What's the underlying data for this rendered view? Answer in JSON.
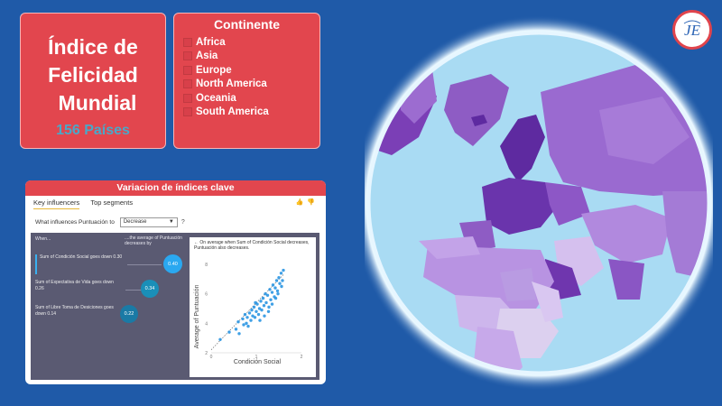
{
  "title_card": {
    "line1": "Índice de",
    "line2": "Felicidad",
    "line3": "Mundial",
    "countries": "156 Países"
  },
  "filter": {
    "title": "Continente",
    "items": [
      "Africa",
      "Asia",
      "Europe",
      "North America",
      "Oceania",
      "South America"
    ]
  },
  "logo": {
    "text": "JE"
  },
  "panel": {
    "header": "Variacion de índices clave",
    "tabs": [
      "Key influencers",
      "Top segments"
    ],
    "active_tab": "Key influencers",
    "question": "What influences Puntuación to",
    "select_value": "Decrease",
    "help": "?",
    "col_when": "When...",
    "col_result": "....the average of Puntuación decreases by",
    "influencers": [
      {
        "text": "Sum of Condición Social goes down 0.30",
        "value": "0.40"
      },
      {
        "text": "Sum of Expectativa de Vida goes down 0.26",
        "value": "0.34"
      },
      {
        "text": "Sum of Libre Toma de Desiciones goes down 0.14",
        "value": "0.22"
      }
    ],
    "scatter_note": "On average when Sum of Condición Social decreases, Puntuación also decreases.",
    "back_arrow": "←"
  },
  "chart_data": {
    "type": "scatter",
    "title": "",
    "xlabel": "Condición Social",
    "ylabel": "Average of Puntuación",
    "xlim": [
      0,
      2
    ],
    "ylim": [
      2,
      8
    ],
    "x_ticks": [
      "0",
      "1",
      "2"
    ],
    "y_ticks": [
      "2",
      "4",
      "6",
      "8"
    ],
    "trend": true,
    "series": [
      {
        "color": "#1f8fe0",
        "points": [
          [
            0.2,
            2.9
          ],
          [
            0.4,
            3.4
          ],
          [
            0.55,
            3.6
          ],
          [
            0.6,
            4.1
          ],
          [
            0.62,
            3.3
          ],
          [
            0.7,
            4.3
          ],
          [
            0.72,
            3.9
          ],
          [
            0.75,
            4.6
          ],
          [
            0.78,
            4.0
          ],
          [
            0.8,
            4.4
          ],
          [
            0.82,
            3.8
          ],
          [
            0.85,
            4.7
          ],
          [
            0.88,
            4.2
          ],
          [
            0.9,
            4.9
          ],
          [
            0.92,
            4.5
          ],
          [
            0.95,
            5.1
          ],
          [
            0.97,
            4.4
          ],
          [
            1.0,
            4.8
          ],
          [
            1.02,
            5.3
          ],
          [
            1.05,
            4.6
          ],
          [
            1.07,
            5.0
          ],
          [
            1.1,
            5.5
          ],
          [
            1.12,
            4.9
          ],
          [
            1.15,
            5.7
          ],
          [
            1.17,
            5.2
          ],
          [
            1.2,
            6.0
          ],
          [
            1.22,
            5.4
          ],
          [
            1.25,
            5.9
          ],
          [
            1.27,
            4.8
          ],
          [
            1.3,
            6.3
          ],
          [
            1.32,
            5.6
          ],
          [
            1.35,
            6.1
          ],
          [
            1.37,
            6.6
          ],
          [
            1.4,
            5.8
          ],
          [
            1.42,
            6.4
          ],
          [
            1.45,
            6.9
          ],
          [
            1.47,
            6.2
          ],
          [
            1.5,
            7.1
          ],
          [
            1.52,
            6.7
          ],
          [
            1.55,
            7.4
          ],
          [
            1.58,
            6.9
          ],
          [
            1.6,
            7.6
          ],
          [
            1.35,
            5.3
          ],
          [
            1.28,
            5.1
          ],
          [
            1.18,
            4.5
          ],
          [
            1.08,
            4.2
          ],
          [
            0.98,
            5.4
          ],
          [
            1.43,
            5.7
          ],
          [
            1.48,
            6.0
          ],
          [
            1.56,
            6.5
          ]
        ]
      }
    ]
  },
  "colors": {
    "background": "#1f5aa8",
    "card": "#e2464e",
    "accent_blue": "#4aa8c8",
    "panel_dark": "#5a5a72",
    "bubble": [
      "#2aa8f0",
      "#1a8fb8",
      "#1a7aa5"
    ]
  }
}
